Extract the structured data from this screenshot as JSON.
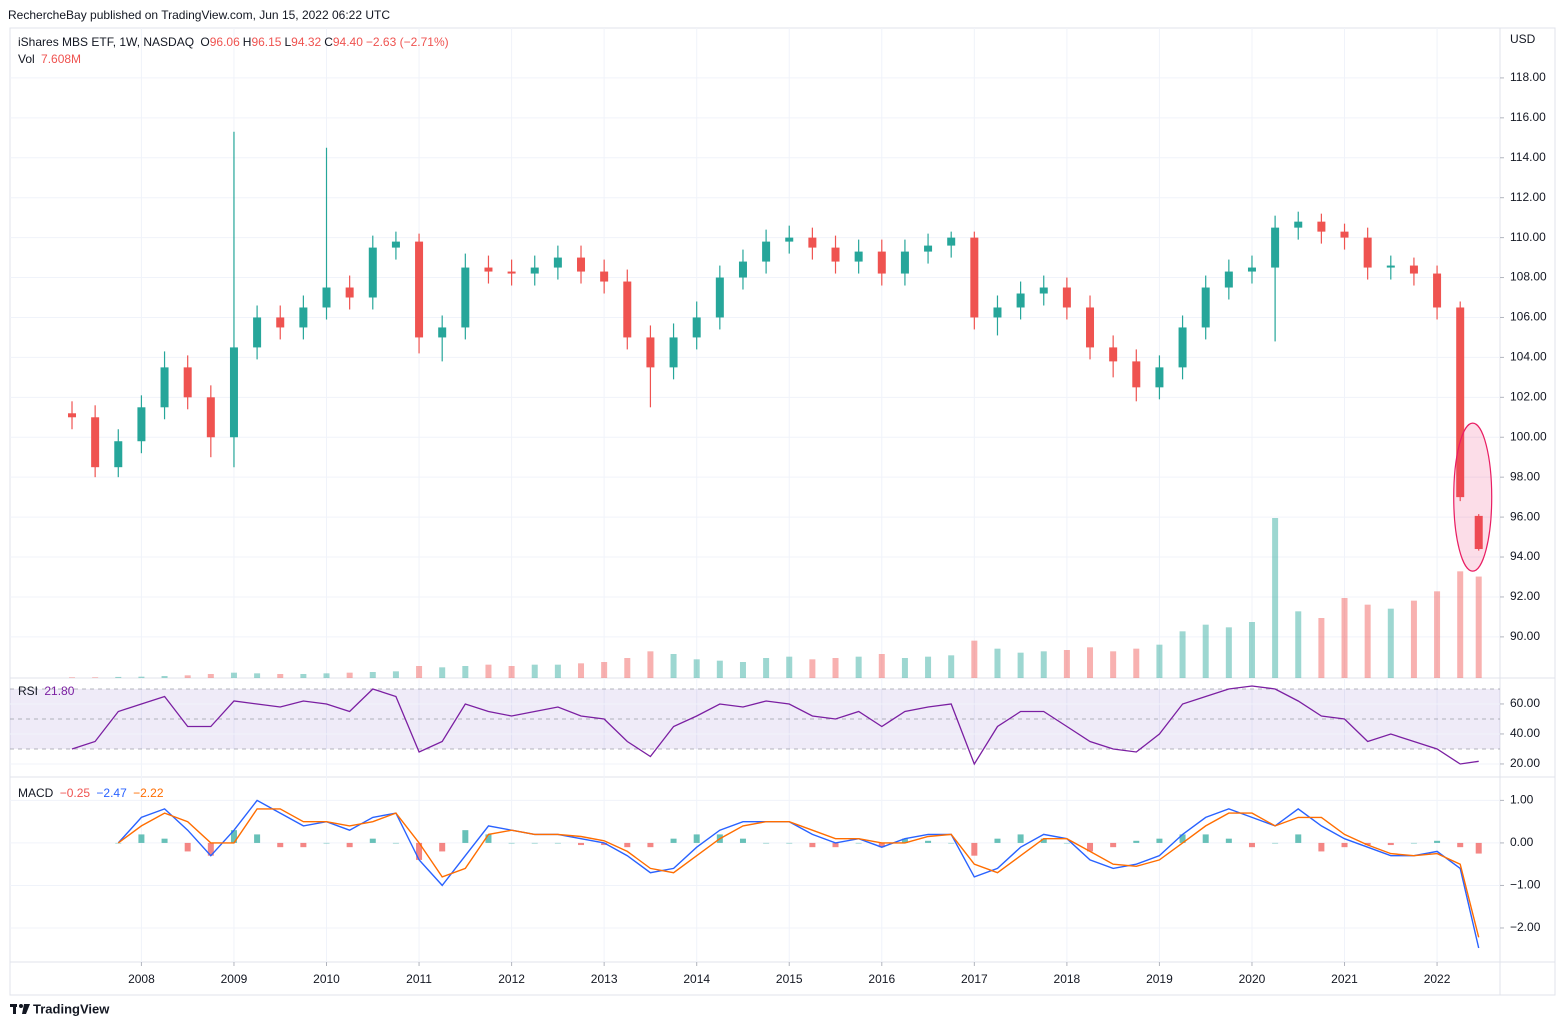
{
  "chart_data": [
    {
      "type": "candlestick",
      "publisher": "RechercheBay published on TradingView.com, Jun 15, 2022 06:22 UTC",
      "title": "iShares MBS ETF, 1W, NASDAQ",
      "ohlc_labels": [
        "O",
        "H",
        "L",
        "C"
      ],
      "ohlc_values": [
        "96.06",
        "96.15",
        "94.32",
        "94.40"
      ],
      "change": "−2.63 (−2.71%)",
      "volume_label": "Vol",
      "volume_value": "7.608M",
      "currency": "USD",
      "brand": "TradingView",
      "up_color": "#26a69a",
      "down_color": "#ef5350",
      "grid": true,
      "x": [
        2007.25,
        2007.5,
        2007.75,
        2008.0,
        2008.25,
        2008.5,
        2008.75,
        2009.0,
        2009.25,
        2009.5,
        2009.75,
        2010.0,
        2010.25,
        2010.5,
        2010.75,
        2011.0,
        2011.25,
        2011.5,
        2011.75,
        2012.0,
        2012.25,
        2012.5,
        2012.75,
        2013.0,
        2013.25,
        2013.5,
        2013.75,
        2014.0,
        2014.25,
        2014.5,
        2014.75,
        2015.0,
        2015.25,
        2015.5,
        2015.75,
        2016.0,
        2016.25,
        2016.5,
        2016.75,
        2017.0,
        2017.25,
        2017.5,
        2017.75,
        2018.0,
        2018.25,
        2018.5,
        2018.75,
        2019.0,
        2019.25,
        2019.5,
        2019.75,
        2020.0,
        2020.25,
        2020.5,
        2020.75,
        2021.0,
        2021.25,
        2021.5,
        2021.75,
        2022.0,
        2022.25,
        2022.45
      ],
      "open": [
        101.2,
        101.0,
        98.5,
        99.8,
        101.5,
        103.5,
        102.0,
        100.0,
        104.5,
        106.0,
        105.5,
        106.5,
        107.5,
        107.0,
        109.5,
        109.8,
        105.0,
        105.5,
        108.5,
        108.3,
        108.2,
        108.5,
        109.0,
        108.3,
        107.8,
        105.0,
        103.5,
        105.0,
        106.0,
        108.0,
        108.8,
        109.8,
        110.0,
        109.5,
        108.8,
        109.3,
        108.2,
        109.3,
        109.6,
        110.0,
        106.0,
        106.5,
        107.2,
        107.5,
        106.5,
        104.5,
        103.8,
        102.5,
        103.5,
        105.5,
        107.5,
        108.3,
        108.5,
        110.5,
        110.8,
        110.3,
        110.0,
        108.5,
        108.6,
        108.2,
        106.5,
        96.06
      ],
      "high": [
        101.8,
        101.6,
        100.4,
        102.1,
        104.3,
        104.1,
        102.6,
        115.3,
        106.6,
        106.6,
        107.1,
        114.5,
        108.1,
        110.1,
        110.3,
        110.2,
        106.1,
        109.2,
        109.1,
        108.9,
        109.1,
        109.6,
        109.6,
        108.9,
        108.4,
        105.6,
        105.7,
        106.8,
        108.6,
        109.4,
        110.4,
        110.6,
        110.5,
        110.1,
        109.9,
        109.9,
        109.9,
        110.2,
        110.3,
        110.3,
        107.1,
        107.8,
        108.1,
        108.0,
        107.1,
        105.1,
        104.4,
        104.1,
        106.1,
        108.1,
        108.9,
        109.1,
        111.1,
        111.3,
        111.2,
        110.7,
        110.5,
        109.1,
        109.0,
        108.6,
        106.8,
        96.15
      ],
      "low": [
        100.4,
        98.0,
        98.0,
        99.2,
        100.9,
        101.4,
        99.0,
        98.5,
        103.9,
        104.9,
        104.9,
        105.9,
        106.4,
        106.4,
        108.9,
        104.2,
        103.8,
        104.9,
        107.7,
        107.6,
        107.6,
        107.9,
        107.7,
        107.2,
        104.4,
        101.5,
        102.9,
        104.4,
        105.4,
        107.4,
        108.2,
        109.2,
        108.9,
        108.2,
        108.2,
        107.6,
        107.6,
        108.7,
        109.0,
        105.4,
        105.1,
        105.9,
        106.6,
        105.9,
        103.9,
        103.0,
        101.8,
        101.9,
        102.9,
        104.9,
        106.9,
        107.7,
        104.8,
        109.9,
        109.7,
        109.4,
        107.9,
        107.9,
        107.6,
        105.9,
        96.8,
        94.32
      ],
      "close": [
        101.0,
        98.5,
        99.8,
        101.5,
        103.5,
        102.0,
        100.0,
        104.5,
        106.0,
        105.5,
        106.5,
        107.5,
        107.0,
        109.5,
        109.8,
        105.0,
        105.5,
        108.5,
        108.3,
        108.2,
        108.5,
        109.0,
        108.3,
        107.8,
        105.0,
        103.5,
        105.0,
        106.0,
        108.0,
        108.8,
        109.8,
        110.0,
        109.5,
        108.8,
        109.3,
        108.2,
        109.3,
        109.6,
        110.0,
        106.0,
        106.5,
        107.2,
        107.5,
        106.5,
        104.5,
        103.8,
        102.5,
        103.5,
        105.5,
        107.5,
        108.3,
        108.5,
        110.5,
        110.8,
        110.3,
        110.0,
        108.5,
        108.6,
        108.2,
        106.5,
        97.0,
        94.4
      ],
      "volume": [
        0.05,
        0.05,
        0.08,
        0.1,
        0.15,
        0.2,
        0.3,
        0.4,
        0.35,
        0.3,
        0.3,
        0.35,
        0.4,
        0.45,
        0.5,
        0.9,
        0.8,
        0.9,
        1.0,
        0.9,
        1.0,
        1.0,
        1.1,
        1.2,
        1.5,
        2.0,
        1.8,
        1.4,
        1.3,
        1.2,
        1.5,
        1.6,
        1.4,
        1.5,
        1.6,
        1.8,
        1.5,
        1.6,
        1.7,
        2.8,
        2.2,
        1.9,
        2.0,
        2.1,
        2.3,
        2.0,
        2.2,
        2.5,
        3.5,
        4.0,
        3.8,
        4.2,
        12.0,
        5.0,
        4.5,
        6.0,
        5.5,
        5.2,
        5.8,
        6.5,
        8.0,
        7.608
      ],
      "xlim": [
        2006.58,
        2022.68
      ],
      "xticks": [
        2008,
        2009,
        2010,
        2011,
        2012,
        2013,
        2014,
        2015,
        2016,
        2017,
        2018,
        2019,
        2020,
        2021,
        2022
      ],
      "ylim": [
        87.94,
        120.4
      ],
      "yticks": [
        {
          "value": 90,
          "label": "90.00"
        },
        {
          "value": 92,
          "label": "92.00"
        },
        {
          "value": 94,
          "label": "94.00"
        },
        {
          "value": 96,
          "label": "96.00"
        },
        {
          "value": 98,
          "label": "98.00"
        },
        {
          "value": 100,
          "label": "100.00"
        },
        {
          "value": 102,
          "label": "102.00"
        },
        {
          "value": 104,
          "label": "104.00"
        },
        {
          "value": 106,
          "label": "106.00"
        },
        {
          "value": 108,
          "label": "108.00"
        },
        {
          "value": 110,
          "label": "110.00"
        },
        {
          "value": 112,
          "label": "112.00"
        },
        {
          "value": 114,
          "label": "114.00"
        },
        {
          "value": 116,
          "label": "116.00"
        },
        {
          "value": 118,
          "label": "118.00"
        }
      ]
    },
    {
      "type": "line",
      "title": "RSI",
      "color": "#7b1fa2",
      "last_value": 21.8,
      "last_label": "21.80",
      "values": [
        30,
        35,
        55,
        60,
        65,
        45,
        45,
        62,
        60,
        58,
        62,
        60,
        55,
        70,
        65,
        28,
        35,
        60,
        55,
        52,
        55,
        58,
        52,
        50,
        35,
        25,
        45,
        52,
        60,
        58,
        62,
        60,
        52,
        50,
        55,
        45,
        55,
        58,
        60,
        20,
        45,
        55,
        55,
        45,
        35,
        30,
        28,
        40,
        60,
        65,
        70,
        72,
        70,
        62,
        52,
        50,
        35,
        40,
        35,
        30,
        20,
        21.8
      ],
      "bands": [
        30,
        70
      ],
      "levels": [
        70,
        50,
        30
      ],
      "ylim": [
        11.3,
        77.3
      ],
      "yticks": [
        {
          "value": 20,
          "label": "20.00"
        },
        {
          "value": 40,
          "label": "40.00"
        },
        {
          "value": 60,
          "label": "60.00"
        }
      ]
    },
    {
      "type": "macd",
      "title": "MACD",
      "series": [
        {
          "name": "histogram",
          "color": "#ef5350",
          "up_color": "#26a69a",
          "values": [
            null,
            null,
            0,
            0.2,
            0.1,
            -0.2,
            -0.3,
            0.3,
            0.2,
            -0.1,
            -0.1,
            0,
            -0.1,
            0.1,
            0,
            -0.4,
            -0.2,
            0.3,
            0.2,
            0,
            0,
            0,
            -0.05,
            -0.05,
            -0.1,
            -0.1,
            0.1,
            0.2,
            0.2,
            0.1,
            0,
            0,
            -0.1,
            -0.1,
            0,
            -0.1,
            0.1,
            0.05,
            0,
            -0.3,
            0.1,
            0.2,
            0.1,
            0,
            -0.2,
            -0.1,
            0.05,
            0.1,
            0.2,
            0.2,
            0.1,
            -0.1,
            0,
            0.2,
            -0.2,
            -0.1,
            -0.05,
            -0.05,
            0,
            0.05,
            -0.1,
            -0.25
          ],
          "last_value": -0.25,
          "last_label": "−0.25"
        },
        {
          "name": "macd",
          "color": "#2962ff",
          "values": [
            null,
            null,
            0.0,
            0.6,
            0.8,
            0.3,
            -0.3,
            0.3,
            1.0,
            0.7,
            0.4,
            0.5,
            0.3,
            0.6,
            0.7,
            -0.4,
            -1.0,
            -0.3,
            0.4,
            0.3,
            0.2,
            0.2,
            0.1,
            0.0,
            -0.3,
            -0.7,
            -0.6,
            -0.1,
            0.3,
            0.5,
            0.5,
            0.5,
            0.2,
            0.0,
            0.1,
            -0.1,
            0.1,
            0.2,
            0.2,
            -0.8,
            -0.6,
            -0.1,
            0.2,
            0.1,
            -0.4,
            -0.6,
            -0.5,
            -0.3,
            0.2,
            0.6,
            0.8,
            0.6,
            0.4,
            0.8,
            0.4,
            0.1,
            -0.1,
            -0.3,
            -0.3,
            -0.2,
            -0.6,
            -2.47
          ],
          "last_value": -2.47,
          "last_label": "−2.47"
        },
        {
          "name": "signal",
          "color": "#ff6d00",
          "values": [
            null,
            null,
            0.0,
            0.4,
            0.7,
            0.5,
            0.0,
            0.0,
            0.8,
            0.8,
            0.5,
            0.5,
            0.4,
            0.5,
            0.7,
            0.0,
            -0.8,
            -0.6,
            0.2,
            0.3,
            0.2,
            0.2,
            0.15,
            0.05,
            -0.2,
            -0.6,
            -0.7,
            -0.3,
            0.1,
            0.4,
            0.5,
            0.5,
            0.3,
            0.1,
            0.1,
            0.0,
            0.0,
            0.15,
            0.2,
            -0.5,
            -0.7,
            -0.3,
            0.1,
            0.1,
            -0.2,
            -0.5,
            -0.55,
            -0.4,
            0.0,
            0.4,
            0.7,
            0.7,
            0.4,
            0.6,
            0.6,
            0.2,
            -0.05,
            -0.25,
            -0.3,
            -0.25,
            -0.5,
            -2.22
          ],
          "last_value": -2.22,
          "last_label": "−2.22"
        }
      ],
      "ylim": [
        -2.8,
        1.55
      ],
      "yticks": [
        {
          "value": 1,
          "label": "1.00"
        },
        {
          "value": 0,
          "label": "0.00"
        },
        {
          "value": -1,
          "label": "−1.00"
        },
        {
          "value": -2,
          "label": "−2.00"
        }
      ]
    }
  ]
}
